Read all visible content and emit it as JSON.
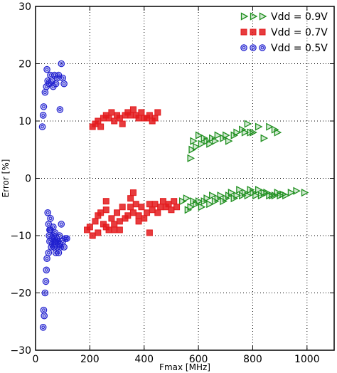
{
  "chart_data": {
    "type": "scatter",
    "xlabel": "Fmax [MHz]",
    "ylabel": "Error [%]",
    "xlim": [
      0,
      1100
    ],
    "ylim": [
      -30,
      30
    ],
    "xticks": [
      0,
      200,
      400,
      600,
      800,
      1000
    ],
    "yticks": [
      -30,
      -20,
      -10,
      0,
      10,
      20,
      30
    ],
    "xtick_labels": [
      "0",
      "200",
      "400",
      "600",
      "800",
      "1000"
    ],
    "ytick_labels": [
      "−30",
      "−20",
      "−10",
      "0",
      "10",
      "20",
      "30"
    ],
    "grid": true,
    "legend_position": "top-right",
    "series": [
      {
        "name": "Vdd = 0.9V",
        "marker": "triangle-right",
        "color": "#1f8f1f",
        "points": [
          [
            570,
            3.5
          ],
          [
            575,
            5
          ],
          [
            580,
            6.5
          ],
          [
            590,
            5.5
          ],
          [
            600,
            7.5
          ],
          [
            610,
            6
          ],
          [
            620,
            7
          ],
          [
            630,
            6.5
          ],
          [
            640,
            6
          ],
          [
            650,
            7
          ],
          [
            660,
            6.5
          ],
          [
            670,
            7.5
          ],
          [
            690,
            7
          ],
          [
            700,
            7.5
          ],
          [
            710,
            6.5
          ],
          [
            730,
            7.5
          ],
          [
            740,
            8
          ],
          [
            760,
            8.5
          ],
          [
            770,
            8
          ],
          [
            780,
            9.5
          ],
          [
            790,
            8
          ],
          [
            800,
            8
          ],
          [
            820,
            9
          ],
          [
            840,
            7
          ],
          [
            860,
            9
          ],
          [
            880,
            8.5
          ],
          [
            890,
            8
          ],
          [
            540,
            -4
          ],
          [
            555,
            -3.5
          ],
          [
            560,
            -5.5
          ],
          [
            570,
            -5
          ],
          [
            580,
            -4
          ],
          [
            590,
            -4.5
          ],
          [
            600,
            -4
          ],
          [
            610,
            -5
          ],
          [
            620,
            -4
          ],
          [
            630,
            -3.5
          ],
          [
            640,
            -4.5
          ],
          [
            650,
            -3
          ],
          [
            660,
            -4
          ],
          [
            670,
            -3.5
          ],
          [
            680,
            -3
          ],
          [
            690,
            -4
          ],
          [
            700,
            -3.5
          ],
          [
            710,
            -3
          ],
          [
            720,
            -2.5
          ],
          [
            730,
            -3.5
          ],
          [
            740,
            -3
          ],
          [
            750,
            -2
          ],
          [
            760,
            -3
          ],
          [
            770,
            -2.5
          ],
          [
            780,
            -3
          ],
          [
            790,
            -2
          ],
          [
            800,
            -2.5
          ],
          [
            810,
            -3
          ],
          [
            820,
            -2
          ],
          [
            830,
            -3
          ],
          [
            840,
            -2.5
          ],
          [
            850,
            -2.5
          ],
          [
            860,
            -3
          ],
          [
            870,
            -3
          ],
          [
            880,
            -3
          ],
          [
            890,
            -2.5
          ],
          [
            900,
            -3
          ],
          [
            910,
            -2.8
          ],
          [
            920,
            -3
          ],
          [
            940,
            -2.5
          ],
          [
            960,
            -2.2
          ],
          [
            990,
            -2.5
          ]
        ]
      },
      {
        "name": "Vdd = 0.7V",
        "marker": "square",
        "color": "#e31a1c",
        "points": [
          [
            210,
            9
          ],
          [
            220,
            9.5
          ],
          [
            230,
            10
          ],
          [
            240,
            9
          ],
          [
            250,
            10.5
          ],
          [
            260,
            11
          ],
          [
            270,
            10.5
          ],
          [
            280,
            11.5
          ],
          [
            290,
            10
          ],
          [
            300,
            11
          ],
          [
            310,
            10.5
          ],
          [
            320,
            9.5
          ],
          [
            330,
            11
          ],
          [
            340,
            11.5
          ],
          [
            350,
            11
          ],
          [
            360,
            12
          ],
          [
            370,
            11
          ],
          [
            380,
            10.5
          ],
          [
            390,
            11.5
          ],
          [
            400,
            10.5
          ],
          [
            410,
            10.5
          ],
          [
            420,
            11
          ],
          [
            430,
            10
          ],
          [
            440,
            10.5
          ],
          [
            450,
            11.5
          ],
          [
            190,
            -9
          ],
          [
            200,
            -8.5
          ],
          [
            210,
            -10
          ],
          [
            220,
            -7.5
          ],
          [
            230,
            -9.5
          ],
          [
            240,
            -6
          ],
          [
            250,
            -8
          ],
          [
            260,
            -5.5
          ],
          [
            270,
            -9
          ],
          [
            280,
            -7
          ],
          [
            290,
            -8
          ],
          [
            300,
            -6
          ],
          [
            310,
            -7.5
          ],
          [
            320,
            -5
          ],
          [
            330,
            -7
          ],
          [
            340,
            -6.5
          ],
          [
            350,
            -5
          ],
          [
            360,
            -6
          ],
          [
            370,
            -4.5
          ],
          [
            380,
            -6.5
          ],
          [
            390,
            -5
          ],
          [
            400,
            -7
          ],
          [
            410,
            -6
          ],
          [
            420,
            -4.5
          ],
          [
            430,
            -5.5
          ],
          [
            440,
            -4.5
          ],
          [
            450,
            -6
          ],
          [
            460,
            -5
          ],
          [
            470,
            -4
          ],
          [
            480,
            -5
          ],
          [
            490,
            -4.5
          ],
          [
            500,
            -5.5
          ],
          [
            510,
            -4
          ],
          [
            520,
            -5
          ],
          [
            230,
            -6.5
          ],
          [
            260,
            -8.5
          ],
          [
            290,
            -9
          ],
          [
            310,
            -9
          ],
          [
            350,
            -3.5
          ],
          [
            360,
            -2.5
          ],
          [
            380,
            -7.5
          ],
          [
            420,
            -9.5
          ],
          [
            260,
            -4
          ]
        ]
      },
      {
        "name": "Vdd = 0.5V",
        "marker": "circle",
        "color": "#1f1fcf",
        "points": [
          [
            25,
            9
          ],
          [
            28,
            11
          ],
          [
            30,
            12.5
          ],
          [
            35,
            15
          ],
          [
            40,
            16
          ],
          [
            42,
            19
          ],
          [
            45,
            17
          ],
          [
            50,
            16.5
          ],
          [
            55,
            18
          ],
          [
            60,
            17
          ],
          [
            65,
            16
          ],
          [
            70,
            18
          ],
          [
            75,
            16.5
          ],
          [
            80,
            17.5
          ],
          [
            85,
            18
          ],
          [
            90,
            12
          ],
          [
            95,
            20
          ],
          [
            100,
            17.5
          ],
          [
            105,
            16.5
          ],
          [
            28,
            -26
          ],
          [
            30,
            -23
          ],
          [
            32,
            -24
          ],
          [
            35,
            -20
          ],
          [
            38,
            -18
          ],
          [
            40,
            -16
          ],
          [
            42,
            -14
          ],
          [
            45,
            -6
          ],
          [
            48,
            -8
          ],
          [
            50,
            -10
          ],
          [
            52,
            -11
          ],
          [
            55,
            -9
          ],
          [
            58,
            -12
          ],
          [
            60,
            -10.5
          ],
          [
            62,
            -11.5
          ],
          [
            65,
            -10
          ],
          [
            68,
            -12
          ],
          [
            70,
            -11
          ],
          [
            72,
            -9.5
          ],
          [
            75,
            -11
          ],
          [
            78,
            -10.5
          ],
          [
            80,
            -12
          ],
          [
            82,
            -11
          ],
          [
            85,
            -13
          ],
          [
            88,
            -10
          ],
          [
            90,
            -11.5
          ],
          [
            92,
            -12
          ],
          [
            95,
            -8
          ],
          [
            100,
            -11
          ],
          [
            105,
            -12
          ],
          [
            110,
            -10.5
          ],
          [
            115,
            -10.5
          ],
          [
            55,
            -7
          ],
          [
            65,
            -8.5
          ],
          [
            75,
            -13
          ],
          [
            48,
            -13
          ],
          [
            52,
            -9
          ]
        ]
      }
    ]
  }
}
